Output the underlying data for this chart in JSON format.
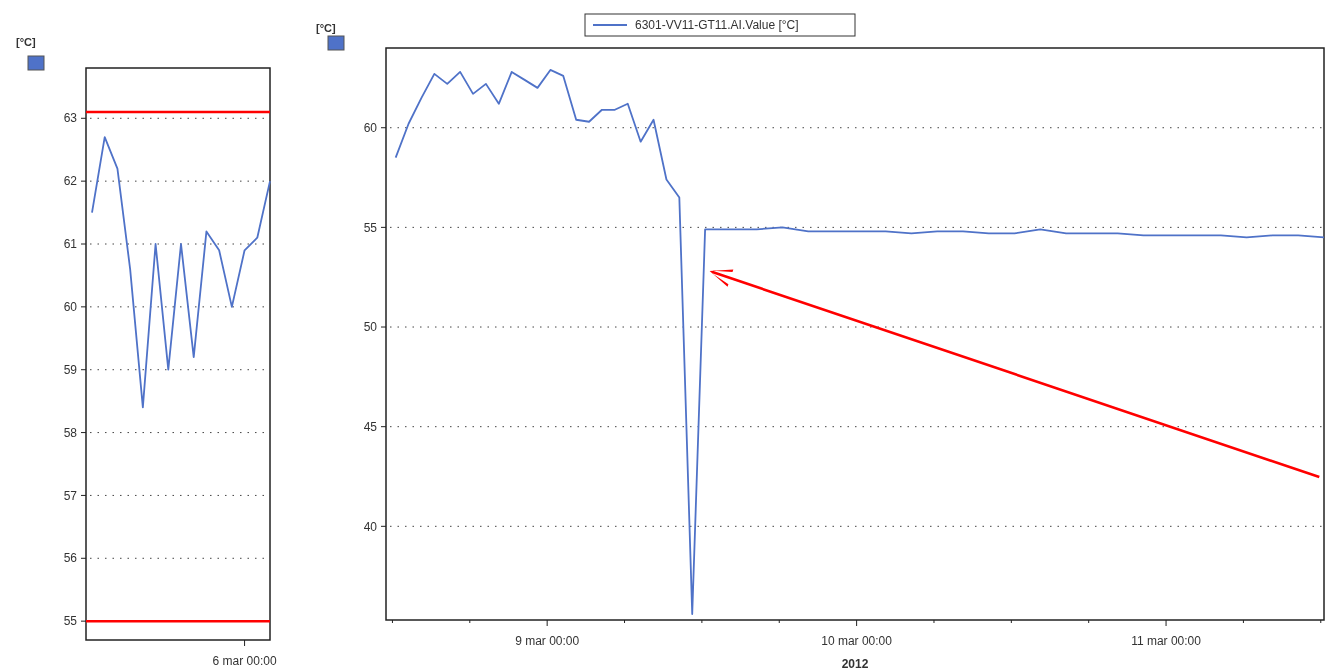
{
  "chart_data": [
    {
      "type": "line",
      "ylabel": "[°C]",
      "ylim": [
        54.7,
        63.8
      ],
      "yticks": [
        55,
        56,
        57,
        58,
        59,
        60,
        61,
        62,
        63
      ],
      "grid": "y",
      "legend": false,
      "categories": [
        null,
        null,
        null,
        null,
        null,
        null,
        null,
        null,
        null,
        null,
        null,
        null,
        "6 mar 00:00",
        null,
        null
      ],
      "series": [
        {
          "color": "#4f72c8",
          "values": [
            61.5,
            62.7,
            62.2,
            60.6,
            58.4,
            61.0,
            59.0,
            61.0,
            59.2,
            61.2,
            60.9,
            60.0,
            60.9,
            61.1,
            62.0
          ]
        }
      ],
      "ref_lines": [
        {
          "axis": "y",
          "value": 63.1,
          "label": null,
          "color": "#ff0000"
        },
        {
          "axis": "y",
          "value": 55,
          "label": null,
          "color": "#ff0000"
        }
      ]
    },
    {
      "type": "line",
      "ylabel": "[°C]",
      "xlabel": "2012",
      "ylim": [
        35.3,
        64
      ],
      "yticks": [
        40,
        45,
        50,
        55,
        60
      ],
      "xlim": [
        "2012-03-08T11:30",
        "2012-03-11T12:15"
      ],
      "xticks": [
        {
          "value": "2012-03-08T12:00",
          "label": null
        },
        {
          "value": "2012-03-08T18:00",
          "label": null
        },
        {
          "value": "2012-03-09T00:00",
          "label": "9 mar 00:00"
        },
        {
          "value": "2012-03-09T06:00",
          "label": null
        },
        {
          "value": "2012-03-09T12:00",
          "label": null
        },
        {
          "value": "2012-03-09T18:00",
          "label": null
        },
        {
          "value": "2012-03-10T00:00",
          "label": "10 mar 00:00"
        },
        {
          "value": "2012-03-10T06:00",
          "label": null
        },
        {
          "value": "2012-03-10T12:00",
          "label": null
        },
        {
          "value": "2012-03-10T18:00",
          "label": null
        },
        {
          "value": "2012-03-11T00:00",
          "label": "11 mar 00:00"
        },
        {
          "value": "2012-03-11T06:00",
          "label": null
        },
        {
          "value": "2012-03-11T12:00",
          "label": null
        }
      ],
      "grid": "y",
      "legend": "top",
      "x": [
        "2012-03-08T12:15",
        "2012-03-08T13:15",
        "2012-03-08T14:15",
        "2012-03-08T15:15",
        "2012-03-08T16:15",
        "2012-03-08T17:15",
        "2012-03-08T18:15",
        "2012-03-08T19:15",
        "2012-03-08T20:15",
        "2012-03-08T21:15",
        "2012-03-08T22:15",
        "2012-03-08T23:15",
        "2012-03-09T00:15",
        "2012-03-09T01:15",
        "2012-03-09T02:15",
        "2012-03-09T03:15",
        "2012-03-09T04:15",
        "2012-03-09T05:15",
        "2012-03-09T06:15",
        "2012-03-09T07:15",
        "2012-03-09T08:15",
        "2012-03-09T09:15",
        "2012-03-09T10:15",
        "2012-03-09T11:15",
        "2012-03-09T12:15",
        "2012-03-09T14:15",
        "2012-03-09T16:15",
        "2012-03-09T18:15",
        "2012-03-09T20:15",
        "2012-03-09T22:15",
        "2012-03-10T00:15",
        "2012-03-10T02:15",
        "2012-03-10T04:15",
        "2012-03-10T06:15",
        "2012-03-10T08:15",
        "2012-03-10T10:15",
        "2012-03-10T12:15",
        "2012-03-10T14:15",
        "2012-03-10T16:15",
        "2012-03-10T18:15",
        "2012-03-10T20:15",
        "2012-03-10T22:15",
        "2012-03-11T00:15",
        "2012-03-11T02:15",
        "2012-03-11T04:15",
        "2012-03-11T06:15",
        "2012-03-11T08:15",
        "2012-03-11T10:15",
        "2012-03-11T12:15"
      ],
      "series": [
        {
          "name": "6301-VV11-GT11.AI.Value [°C]",
          "color": "#4f72c8",
          "values": [
            58.5,
            60.2,
            61.5,
            62.7,
            62.2,
            62.8,
            61.7,
            62.2,
            61.2,
            62.8,
            62.4,
            62.0,
            62.9,
            62.6,
            60.4,
            60.3,
            60.9,
            60.9,
            61.2,
            59.3,
            60.4,
            57.4,
            56.5,
            35.6,
            54.9,
            54.9,
            54.9,
            55.0,
            54.8,
            54.8,
            54.8,
            54.8,
            54.7,
            54.8,
            54.8,
            54.7,
            54.7,
            54.9,
            54.7,
            54.7,
            54.7,
            54.6,
            54.6,
            54.6,
            54.6,
            54.5,
            54.6,
            54.6,
            54.5
          ]
        }
      ]
    }
  ]
}
